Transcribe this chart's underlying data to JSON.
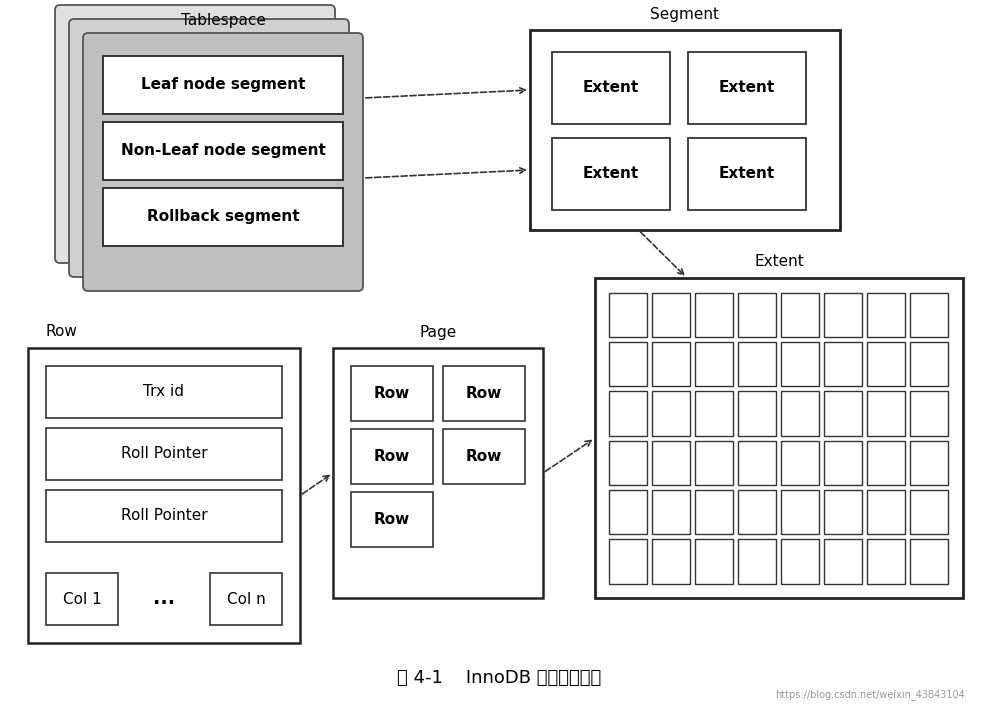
{
  "bg_color": "#ffffff",
  "title": "图 4-1    InnoDB 逻辑存储结构",
  "title_fontsize": 13,
  "watermark": "https://blog.csdn.net/weixin_43843104",
  "tablespace_label": "Tablespace",
  "segment_label": "Segment",
  "extent_label": "Extent",
  "page_label": "Page",
  "row_label": "Row",
  "segments": [
    "Leaf node segment",
    "Non-Leaf node segment",
    "Rollback segment"
  ],
  "extent_grid_rows": 6,
  "extent_grid_cols": 8,
  "font_size": 10,
  "label_font_size": 11,
  "ts_gray1": "#c0c0c0",
  "ts_gray2": "#d0d0d0",
  "ts_gray3": "#e0e0e0",
  "seg_bg": "#e8e8e8"
}
